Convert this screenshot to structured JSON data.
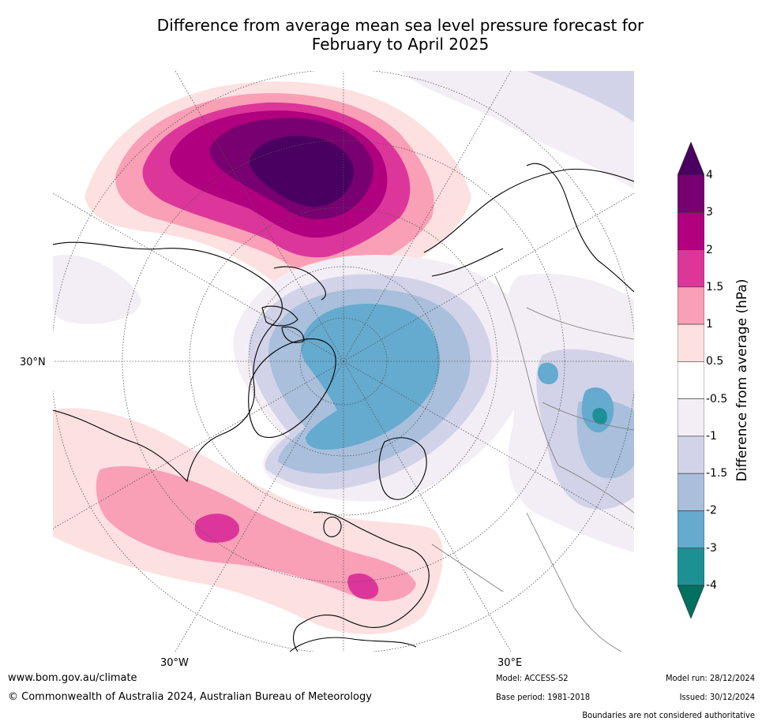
{
  "title_line1": "Difference from average mean sea level pressure forecast for",
  "title_line2": "February to April 2025",
  "map": {
    "lat_labels": {
      "left": "30°N"
    },
    "lon_labels": {
      "west": "30°W",
      "east": "30°E"
    },
    "colors": {
      "p4": "#4a0060",
      "p3": "#780070",
      "p2": "#b0007f",
      "p15": "#dc369b",
      "p1": "#f99fb6",
      "p05": "#fde0e0",
      "n05": "#f3eef5",
      "n1": "#d2d3e8",
      "n15": "#a9bfdc",
      "n2": "#65aacf",
      "n3": "#1d9096",
      "n4": "#00705f"
    }
  },
  "colorbar": {
    "label": "Difference from average (hPa)",
    "ticks": [
      "4",
      "3",
      "2",
      "1.5",
      "1",
      "0.5",
      "-0.5",
      "-1",
      "-1.5",
      "-2",
      "-3",
      "-4"
    ],
    "colors": [
      "#4a0060",
      "#780070",
      "#b0007f",
      "#dc369b",
      "#f99fb6",
      "#fde0e0",
      "#ffffff",
      "#f3eef5",
      "#d2d3e8",
      "#a9bfdc",
      "#65aacf",
      "#1d9096",
      "#00705f"
    ]
  },
  "footer": {
    "website": "www.bom.gov.au/climate",
    "copyright": "© Commonwealth of Australia 2024, Australian Bureau of Meteorology",
    "model": "Model: ACCESS-S2",
    "base_period": "Base period: 1981-2018",
    "model_run": "Model run: 28/12/2024",
    "issued": "Issued: 30/12/2024",
    "disclaimer": "Boundaries are not considered authoritative"
  }
}
